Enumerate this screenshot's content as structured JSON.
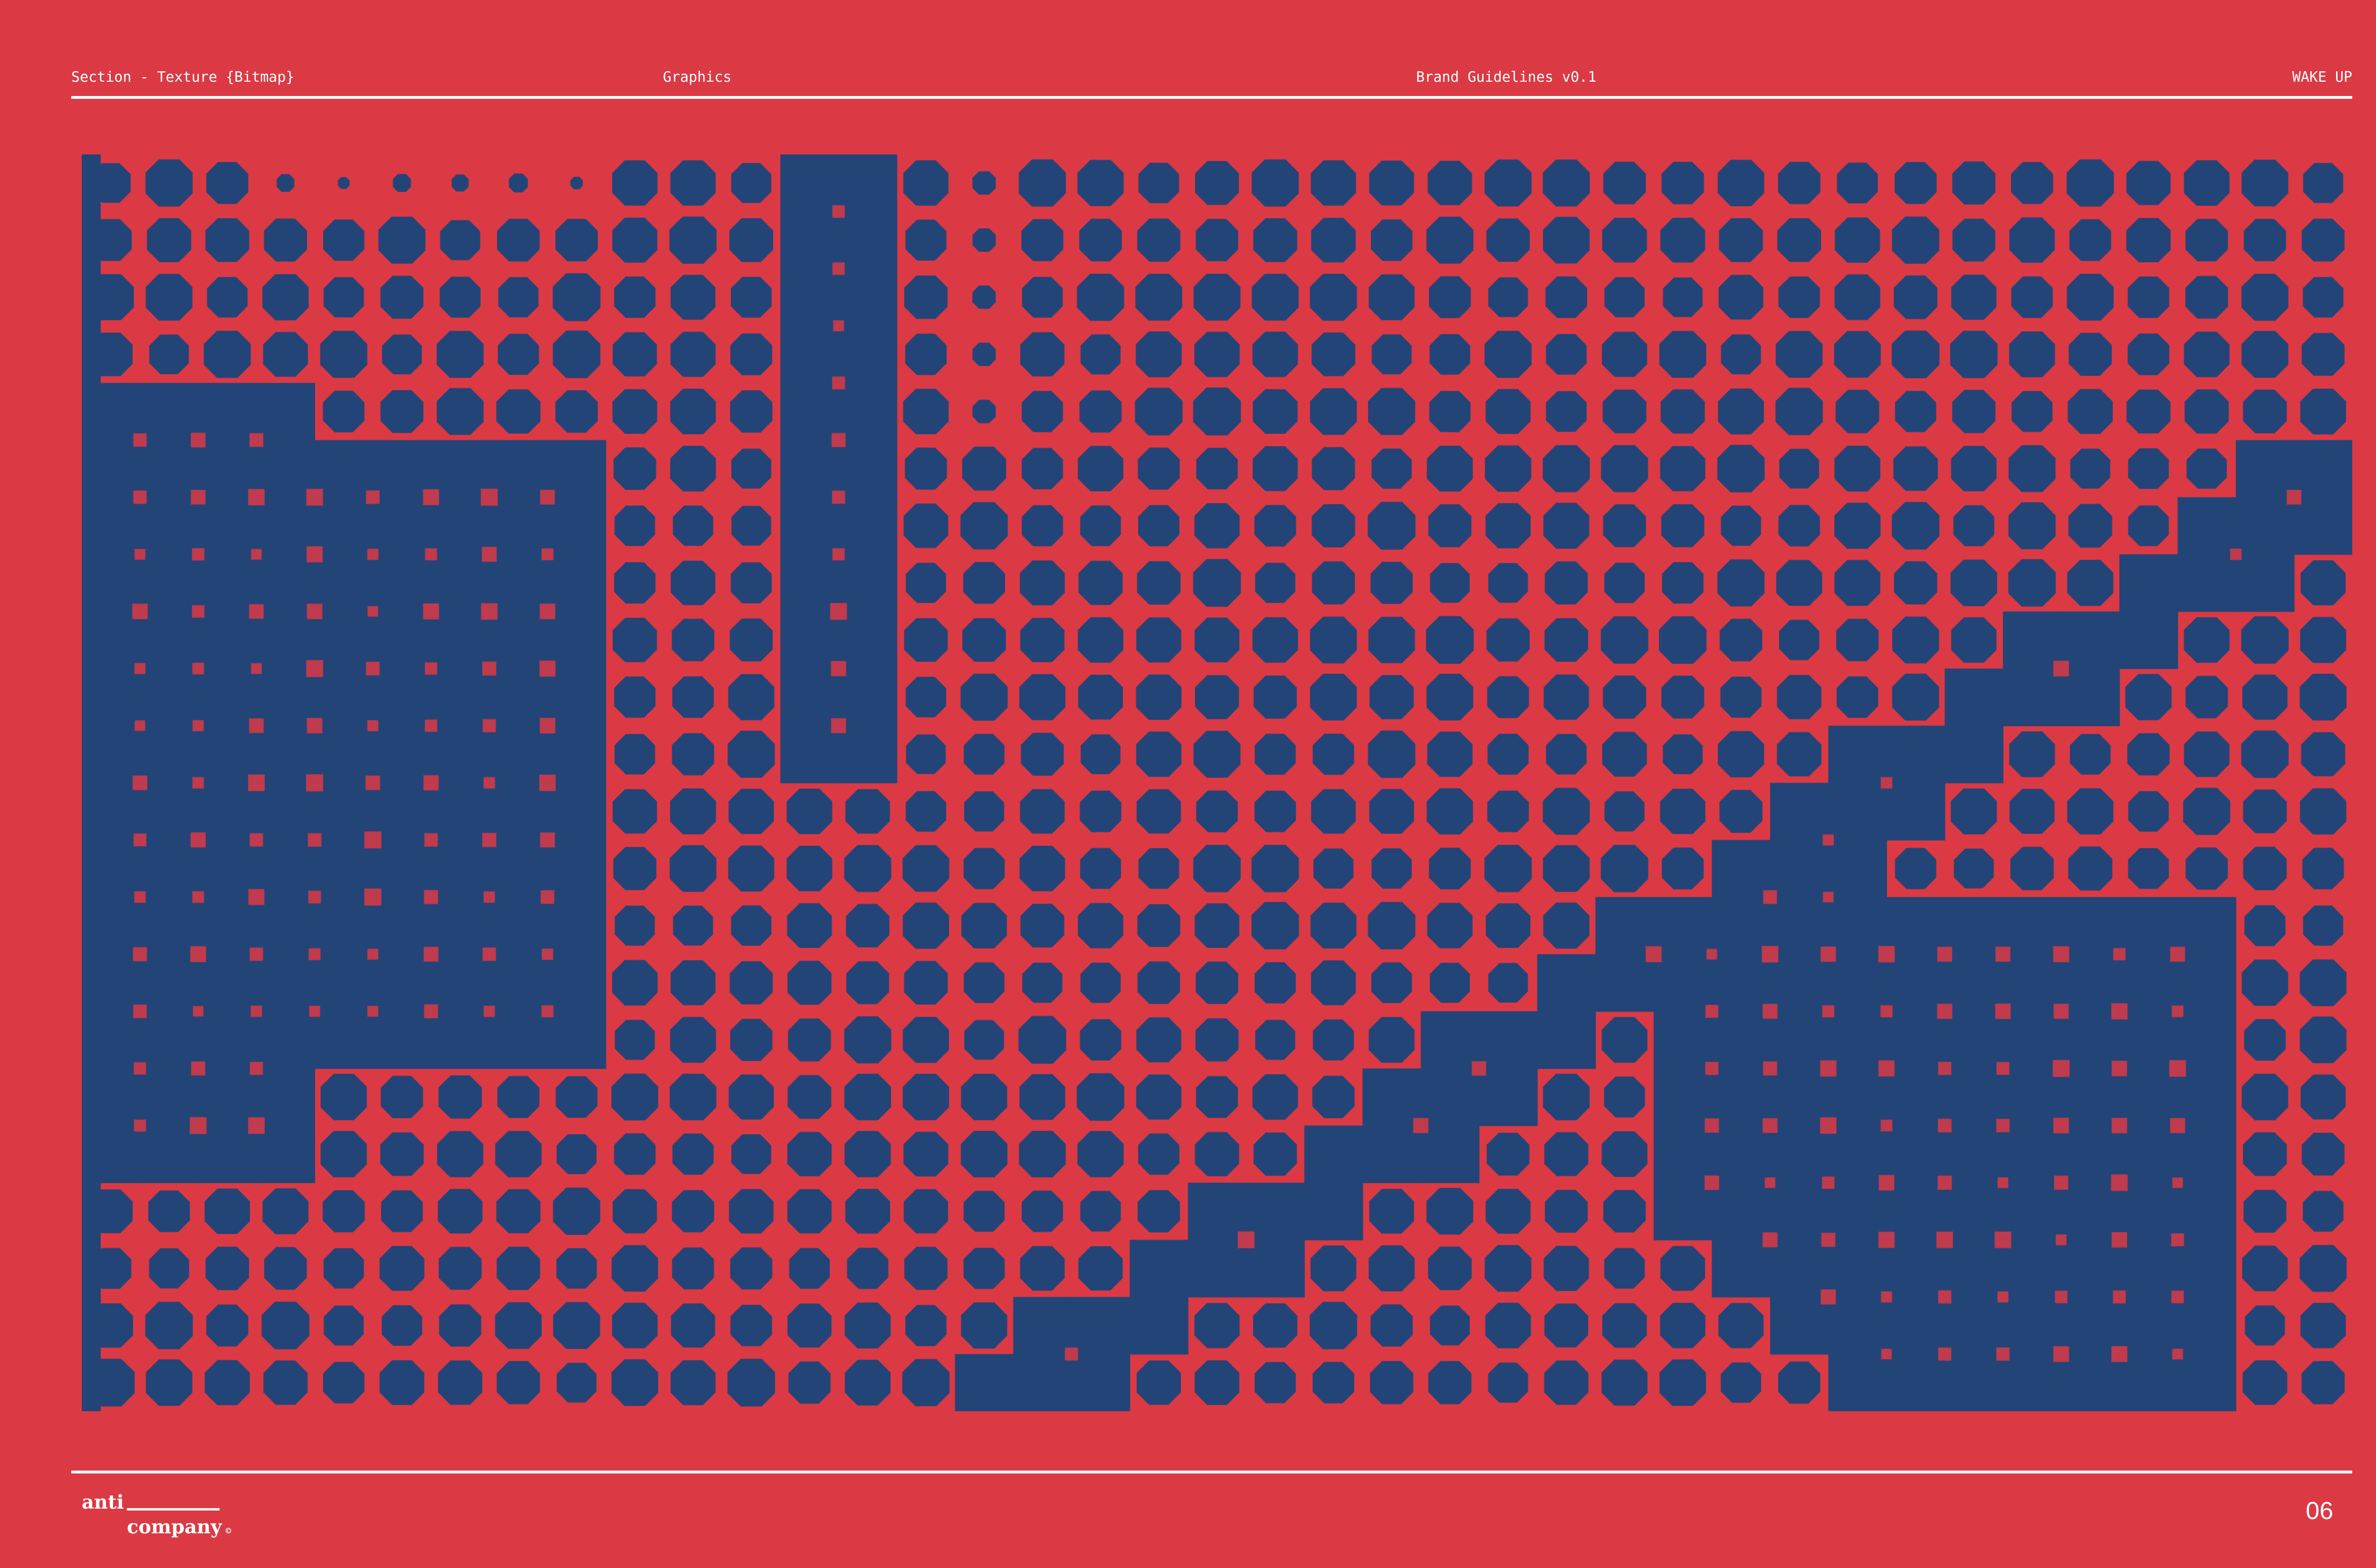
{
  "header": {
    "section": "Section - Texture {Bitmap}",
    "category": "Graphics",
    "document": "Brand Guidelines v0.1",
    "campaign": "WAKE UP"
  },
  "colors": {
    "background": "#DB3A45",
    "texture_blue": "#234477",
    "text": "#FFFFFF"
  },
  "footer": {
    "logo": {
      "line1": "anti",
      "line2": "company",
      "mark": "©"
    },
    "page_number": "06"
  }
}
